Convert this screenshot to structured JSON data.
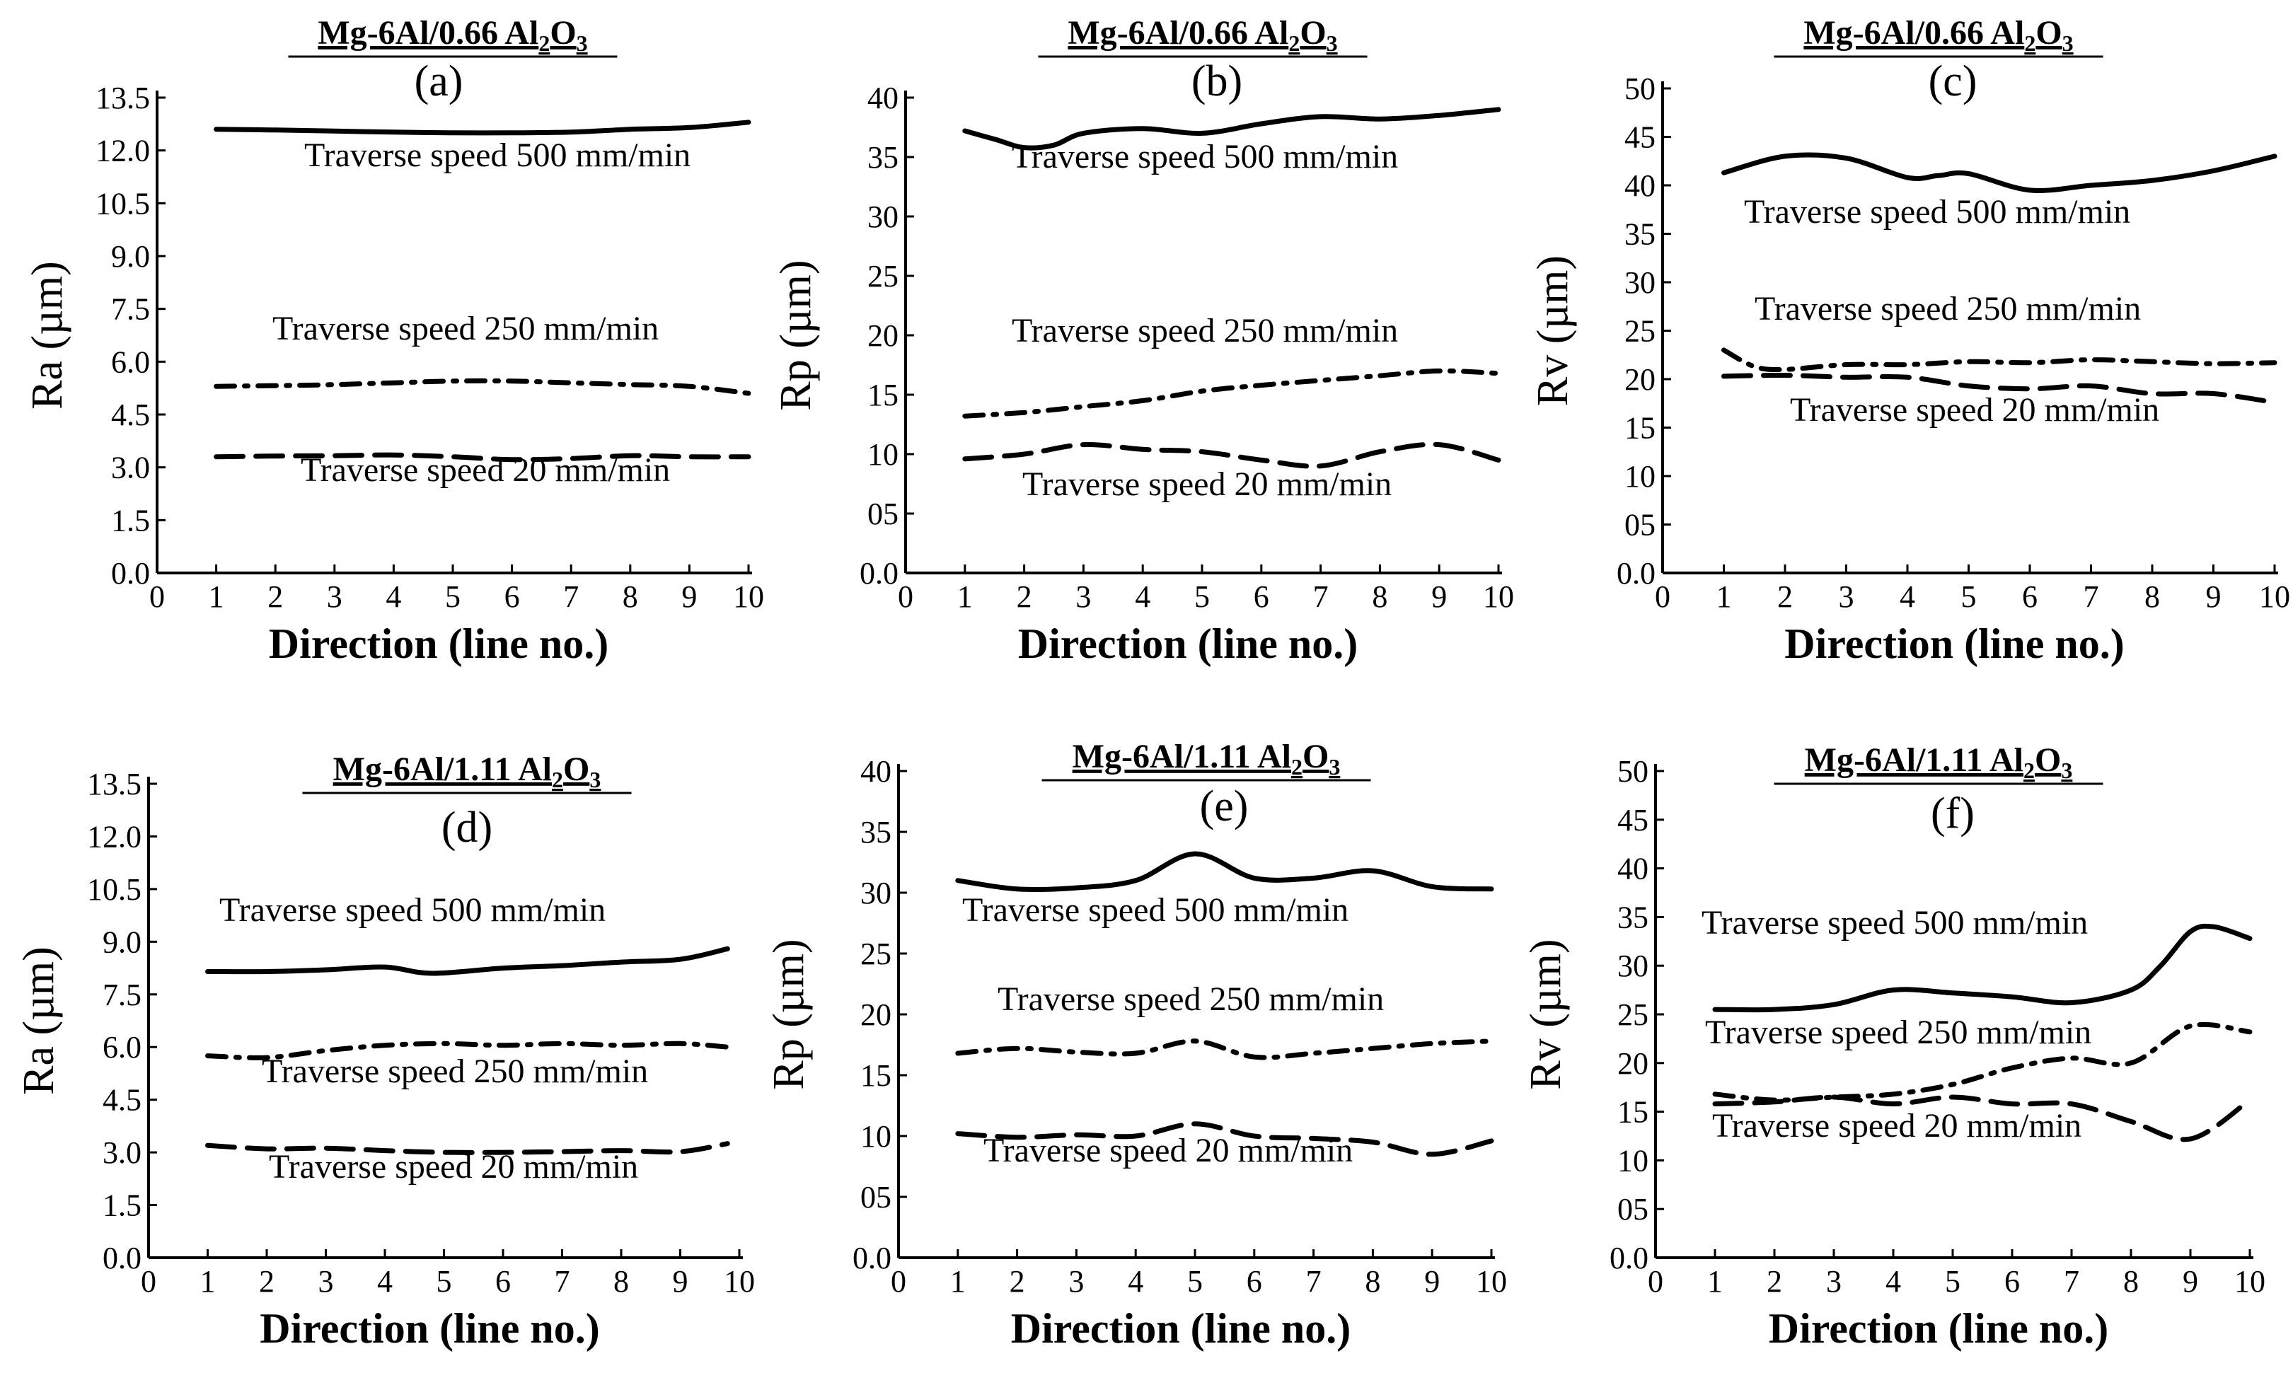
{
  "chart_data": [
    {
      "type": "line",
      "panel": "(a)",
      "title": "Mg-6Al/0.66 Al2O3",
      "xlabel": "Direction (line no.)",
      "ylabel": "Ra (µm)",
      "xlim": [
        0,
        10
      ],
      "ylim": [
        0,
        13.5
      ],
      "xticks": [
        "0",
        "1",
        "2",
        "3",
        "4",
        "5",
        "6",
        "7",
        "8",
        "9",
        "10"
      ],
      "yticks": [
        "0.0",
        "1.5",
        "3.0",
        "4.5",
        "6.0",
        "7.5",
        "9.0",
        "10.5",
        "12.0",
        "13.5"
      ],
      "series": [
        {
          "name": "Traverse speed 500 mm/min",
          "style": "solid",
          "x": [
            1,
            2,
            3,
            4,
            5,
            6,
            7,
            8,
            9,
            10
          ],
          "y": [
            12.6,
            12.58,
            12.55,
            12.52,
            12.5,
            12.5,
            12.52,
            12.6,
            12.65,
            12.8
          ]
        },
        {
          "name": "Traverse speed 250 mm/min",
          "style": "dashdot",
          "x": [
            1,
            2,
            3,
            4,
            5,
            6,
            7,
            8,
            9,
            10
          ],
          "y": [
            5.3,
            5.32,
            5.35,
            5.4,
            5.45,
            5.45,
            5.4,
            5.35,
            5.3,
            5.1
          ]
        },
        {
          "name": "Traverse speed 20 mm/min",
          "style": "dashed",
          "x": [
            1,
            2,
            3,
            4,
            5,
            6,
            7,
            8,
            9,
            10
          ],
          "y": [
            3.3,
            3.32,
            3.33,
            3.35,
            3.3,
            3.22,
            3.25,
            3.33,
            3.3,
            3.3
          ]
        }
      ]
    },
    {
      "type": "line",
      "panel": "(b)",
      "title": "Mg-6Al/0.66 Al2O3",
      "xlabel": "Direction (line no.)",
      "ylabel": "Rp (µm)",
      "xlim": [
        0,
        10
      ],
      "ylim": [
        0,
        40
      ],
      "xticks": [
        "0",
        "1",
        "2",
        "3",
        "4",
        "5",
        "6",
        "7",
        "8",
        "9",
        "10"
      ],
      "yticks": [
        "0.0",
        "05",
        "10",
        "15",
        "20",
        "25",
        "30",
        "35",
        "40"
      ],
      "series": [
        {
          "name": "Traverse speed 500 mm/min",
          "style": "solid",
          "x": [
            1,
            1.5,
            2,
            2.5,
            3,
            4,
            5,
            6,
            7,
            8,
            9,
            10
          ],
          "y": [
            37.2,
            36.5,
            35.8,
            36.0,
            37.0,
            37.4,
            37.0,
            37.8,
            38.4,
            38.2,
            38.5,
            39.0
          ]
        },
        {
          "name": "Traverse speed 250 mm/min",
          "style": "dashdot",
          "x": [
            1,
            2,
            3,
            4,
            5,
            6,
            7,
            8,
            9,
            10
          ],
          "y": [
            13.2,
            13.5,
            14.0,
            14.5,
            15.3,
            15.8,
            16.2,
            16.6,
            17.0,
            16.8
          ]
        },
        {
          "name": "Traverse speed 20 mm/min",
          "style": "dashed",
          "x": [
            1,
            2,
            3,
            4,
            5,
            6,
            7,
            8,
            9,
            10
          ],
          "y": [
            9.6,
            10.0,
            10.8,
            10.4,
            10.2,
            9.5,
            9.0,
            10.2,
            10.8,
            9.5
          ]
        }
      ]
    },
    {
      "type": "line",
      "panel": "(c)",
      "title": "Mg-6Al/0.66 Al2O3",
      "xlabel": "Direction (line no.)",
      "ylabel": "Rv (µm)",
      "xlim": [
        0,
        10
      ],
      "ylim": [
        0,
        50
      ],
      "xticks": [
        "0",
        "1",
        "2",
        "3",
        "4",
        "5",
        "6",
        "7",
        "8",
        "9",
        "10"
      ],
      "yticks": [
        "0.0",
        "05",
        "10",
        "15",
        "20",
        "25",
        "30",
        "35",
        "40",
        "45",
        "50"
      ],
      "series": [
        {
          "name": "Traverse speed 500 mm/min",
          "style": "solid",
          "x": [
            1,
            2,
            3,
            4,
            4.5,
            5,
            6,
            7,
            8,
            9,
            10
          ],
          "y": [
            41.3,
            43.0,
            42.8,
            40.8,
            41.0,
            41.2,
            39.5,
            40.0,
            40.5,
            41.5,
            43.0
          ]
        },
        {
          "name": "Traverse speed 250 mm/min",
          "style": "dashdot",
          "x": [
            1,
            1.5,
            2,
            3,
            4,
            5,
            6,
            7,
            8,
            9,
            10
          ],
          "y": [
            23.0,
            21.3,
            21.0,
            21.5,
            21.5,
            21.8,
            21.7,
            22.0,
            21.8,
            21.6,
            21.7
          ]
        },
        {
          "name": "Traverse speed 20 mm/min",
          "style": "dashed",
          "x": [
            1,
            2,
            3,
            4,
            5,
            6,
            7,
            8,
            9,
            10
          ],
          "y": [
            20.3,
            20.4,
            20.2,
            20.2,
            19.3,
            19.0,
            19.3,
            18.5,
            18.5,
            17.6
          ]
        }
      ]
    },
    {
      "type": "line",
      "panel": "(d)",
      "title": "Mg-6Al/1.11 Al2O3",
      "xlabel": "Direction (line no.)",
      "ylabel": "Ra (µm)",
      "xlim": [
        0,
        10
      ],
      "ylim": [
        0,
        13.5
      ],
      "xticks": [
        "0",
        "1",
        "2",
        "3",
        "4",
        "5",
        "6",
        "7",
        "8",
        "9",
        "10"
      ],
      "yticks": [
        "0.0",
        "1.5",
        "3.0",
        "4.5",
        "6.0",
        "7.5",
        "9.0",
        "10.5",
        "12.0",
        "13.5"
      ],
      "series": [
        {
          "name": "Traverse speed 500 mm/min",
          "style": "solid",
          "x": [
            1,
            2,
            3,
            4,
            4.8,
            6,
            7,
            8,
            9,
            9.8
          ],
          "y": [
            8.15,
            8.15,
            8.2,
            8.28,
            8.1,
            8.25,
            8.32,
            8.42,
            8.5,
            8.8
          ]
        },
        {
          "name": "Traverse speed 250 mm/min",
          "style": "dashdot",
          "x": [
            1,
            2,
            3,
            4,
            5,
            6,
            7,
            8,
            9,
            9.8
          ],
          "y": [
            5.75,
            5.7,
            5.9,
            6.05,
            6.1,
            6.05,
            6.1,
            6.05,
            6.1,
            6.0
          ]
        },
        {
          "name": "Traverse speed 20 mm/min",
          "style": "dashed",
          "x": [
            1,
            2,
            3,
            4,
            5,
            6,
            7,
            8,
            9,
            9.8
          ],
          "y": [
            3.2,
            3.1,
            3.12,
            3.05,
            3.0,
            3.0,
            3.02,
            3.05,
            3.02,
            3.25
          ]
        }
      ]
    },
    {
      "type": "line",
      "panel": "(e)",
      "title": "Mg-6Al/1.11 Al2O3",
      "xlabel": "Direction (line no.)",
      "ylabel": "Rp (µm)",
      "xlim": [
        0,
        10
      ],
      "ylim": [
        0,
        40
      ],
      "xticks": [
        "0",
        "1",
        "2",
        "3",
        "4",
        "5",
        "6",
        "7",
        "8",
        "9",
        "10"
      ],
      "yticks": [
        "0.0",
        "05",
        "10",
        "15",
        "20",
        "25",
        "30",
        "35",
        "40"
      ],
      "series": [
        {
          "name": "Traverse speed 500 mm/min",
          "style": "solid",
          "x": [
            1,
            2,
            3,
            4,
            5,
            6,
            7,
            8,
            9,
            10
          ],
          "y": [
            31.0,
            30.3,
            30.4,
            31.0,
            33.2,
            31.2,
            31.2,
            31.8,
            30.5,
            30.3
          ]
        },
        {
          "name": "Traverse speed 250 mm/min",
          "style": "dashdot",
          "x": [
            1,
            2,
            3,
            4,
            5,
            6,
            7,
            8,
            9,
            10
          ],
          "y": [
            16.8,
            17.2,
            16.9,
            16.8,
            17.8,
            16.5,
            16.8,
            17.2,
            17.6,
            17.8
          ]
        },
        {
          "name": "Traverse speed 20 mm/min",
          "style": "dashed",
          "x": [
            1,
            2,
            3,
            4,
            5,
            6,
            7,
            8,
            9,
            10
          ],
          "y": [
            10.2,
            9.9,
            10.1,
            10.0,
            11.0,
            10.0,
            9.8,
            9.5,
            8.5,
            9.6
          ]
        }
      ]
    },
    {
      "type": "line",
      "panel": "(f)",
      "title": "Mg-6Al/1.11 Al2O3",
      "xlabel": "Direction (line no.)",
      "ylabel": "Rv (µm)",
      "xlim": [
        0,
        10
      ],
      "ylim": [
        0,
        50
      ],
      "xticks": [
        "0",
        "1",
        "2",
        "3",
        "4",
        "5",
        "6",
        "7",
        "8",
        "9",
        "10"
      ],
      "yticks": [
        "0.0",
        "05",
        "10",
        "15",
        "20",
        "25",
        "30",
        "35",
        "40",
        "45",
        "50"
      ],
      "series": [
        {
          "name": "Traverse speed 500 mm/min",
          "style": "solid",
          "x": [
            1,
            2,
            3,
            4,
            5,
            6,
            7,
            8,
            8.5,
            9,
            9.4,
            10
          ],
          "y": [
            25.5,
            25.5,
            26.0,
            27.5,
            27.2,
            26.8,
            26.2,
            27.5,
            30.0,
            33.5,
            34.0,
            32.8
          ]
        },
        {
          "name": "Traverse speed 250 mm/min",
          "style": "dashdot",
          "x": [
            1,
            2,
            3,
            4,
            5,
            6,
            7,
            8,
            9,
            10
          ],
          "y": [
            16.8,
            16.2,
            16.5,
            16.8,
            17.8,
            19.5,
            20.5,
            20.0,
            23.8,
            23.2
          ]
        },
        {
          "name": "Traverse speed 20 mm/min",
          "style": "dashed",
          "x": [
            1,
            2,
            3,
            4,
            5,
            6,
            7,
            8,
            9,
            10
          ],
          "y": [
            15.8,
            16.0,
            16.5,
            15.8,
            16.5,
            15.8,
            15.8,
            14.0,
            12.2,
            16.2
          ]
        }
      ]
    }
  ]
}
